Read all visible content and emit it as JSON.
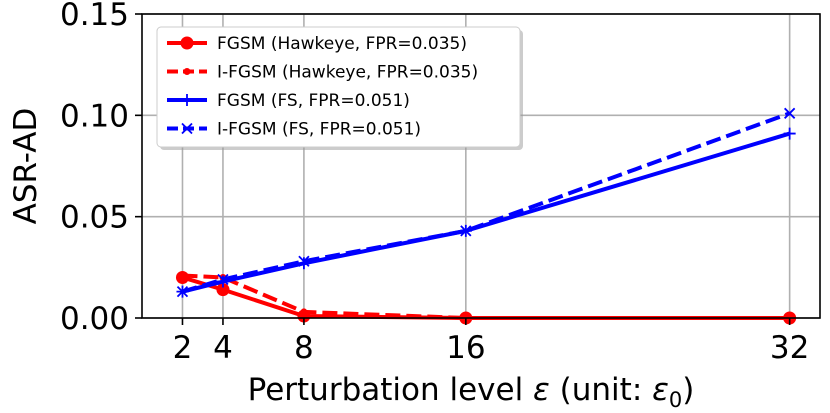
{
  "chart_data": {
    "type": "line",
    "xlabel": "Perturbation level ε (unit: ε₀)",
    "ylabel": "ASR-AD",
    "x": [
      2,
      4,
      8,
      16,
      32
    ],
    "xticks": [
      2,
      4,
      8,
      16,
      32
    ],
    "xtick_labels": [
      "2",
      "4",
      "8",
      "16",
      "32"
    ],
    "xlim": [
      0,
      33.5
    ],
    "ylim": [
      0,
      0.15
    ],
    "yticks": [
      0,
      0.05,
      0.1,
      0.15
    ],
    "ytick_labels": [
      "0.00",
      "0.05",
      "0.10",
      "0.15"
    ],
    "grid": true,
    "legend_position": "top-left",
    "series": [
      {
        "name": "FGSM (Hawkeye, FPR=0.035)",
        "color": "#ff0000",
        "linestyle": "solid",
        "marker": "circle",
        "values": [
          0.02,
          0.014,
          0.001,
          0.0,
          0.0
        ]
      },
      {
        "name": "I-FGSM (Hawkeye, FPR=0.035)",
        "color": "#ff0000",
        "linestyle": "dashed",
        "marker": "point",
        "values": [
          0.021,
          0.02,
          0.003,
          0.0,
          0.0
        ]
      },
      {
        "name": "FGSM (FS, FPR=0.051)",
        "color": "#0000ff",
        "linestyle": "solid",
        "marker": "plus",
        "values": [
          0.013,
          0.018,
          0.027,
          0.043,
          0.091
        ]
      },
      {
        "name": "I-FGSM (FS, FPR=0.051)",
        "color": "#0000ff",
        "linestyle": "dashed",
        "marker": "x",
        "values": [
          0.013,
          0.019,
          0.028,
          0.043,
          0.101
        ]
      }
    ]
  }
}
